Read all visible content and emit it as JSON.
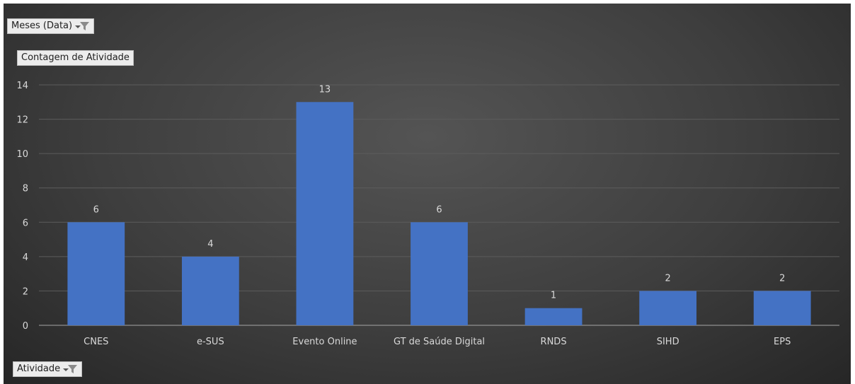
{
  "filters": {
    "date_field": "Meses (Data)",
    "value_field": "Contagem de Atividade",
    "axis_field": "Atividade"
  },
  "chart_data": {
    "type": "bar",
    "categories": [
      "CNES",
      "e-SUS",
      "Evento Online",
      "GT de Saúde Digital",
      "RNDS",
      "SIHD",
      "EPS"
    ],
    "values": [
      6,
      4,
      13,
      6,
      1,
      2,
      2
    ],
    "ylim": [
      0,
      14
    ],
    "yticks": [
      0,
      2,
      4,
      6,
      8,
      10,
      12,
      14
    ],
    "title": "",
    "xlabel": "",
    "ylabel": "",
    "grid": true,
    "legend": "none",
    "bar_color": "#4472c4",
    "background": "#3a3a3a"
  }
}
